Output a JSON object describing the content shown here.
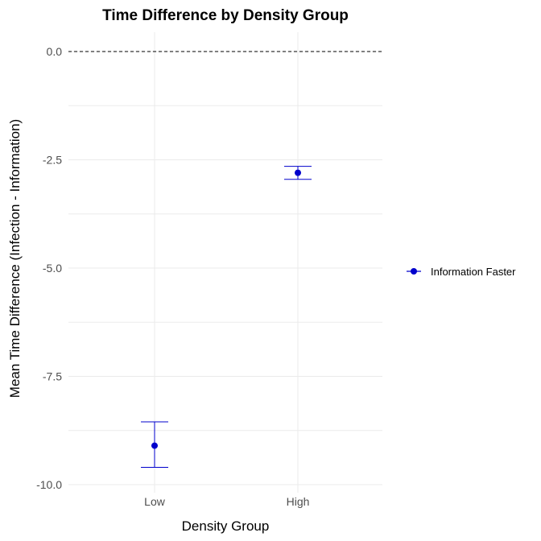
{
  "chart_data": {
    "type": "scatter",
    "title": "Time Difference by Density Group",
    "xlabel": "Density Group",
    "ylabel": "Mean Time Difference (Infection - Information)",
    "categories": [
      "Low",
      "High"
    ],
    "ylim": [
      -10.0,
      0.0
    ],
    "yticks": [
      "0.0",
      "-2.5",
      "-5.0",
      "-7.5",
      "-10.0"
    ],
    "ytick_values": [
      0.0,
      -2.5,
      -5.0,
      -7.5,
      -10.0
    ],
    "reference_line": {
      "y": 0.0,
      "style": "dashed"
    },
    "grid": true,
    "legend_position": "right",
    "series": [
      {
        "name": "Information Faster",
        "color": "#0000cc",
        "values": [
          -9.1,
          -2.8
        ],
        "error_low": [
          -9.6,
          -2.95
        ],
        "error_high": [
          -8.55,
          -2.65
        ]
      }
    ]
  }
}
